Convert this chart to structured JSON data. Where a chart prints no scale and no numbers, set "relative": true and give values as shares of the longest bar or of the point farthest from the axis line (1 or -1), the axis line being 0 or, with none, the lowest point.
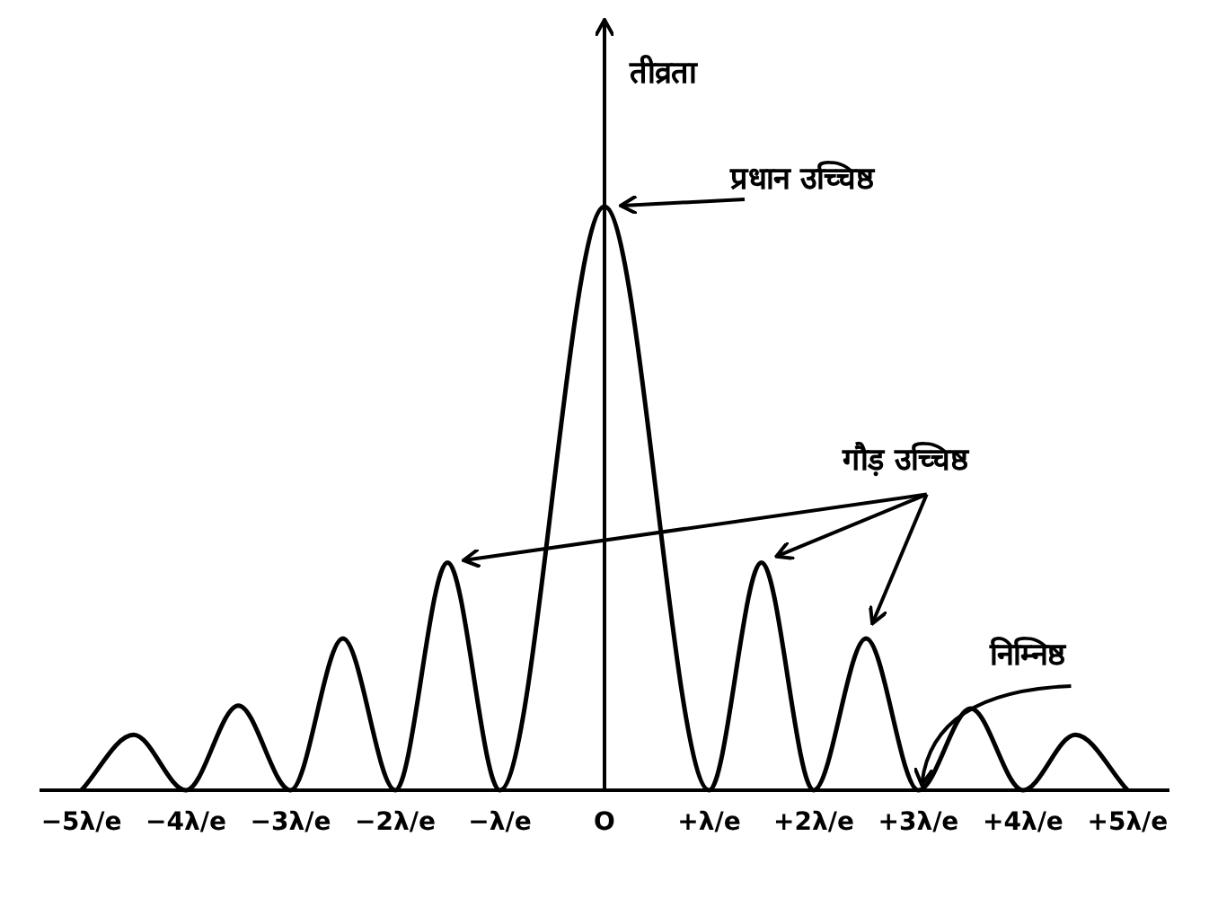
{
  "chart_data": {
    "type": "line",
    "relative": true,
    "color": "#000000",
    "ylabel": "तीव्रता",
    "x": [
      -5,
      -4.5,
      -4,
      -3.5,
      -3,
      -2.5,
      -2,
      -1.5,
      -1,
      0,
      1,
      1.5,
      2,
      2.5,
      3,
      3.5,
      4,
      4.5,
      5
    ],
    "values": [
      0,
      0.095,
      0,
      0.145,
      0,
      0.26,
      0,
      0.39,
      0,
      1,
      0,
      0.39,
      0,
      0.26,
      0,
      0.14,
      0,
      0.095,
      0
    ],
    "xlim": [
      -5.4,
      5.4
    ],
    "xticks": [
      {
        "value": -5,
        "label": "−5λ/e"
      },
      {
        "value": -4,
        "label": "−4λ/e"
      },
      {
        "value": -3,
        "label": "−3λ/e"
      },
      {
        "value": -2,
        "label": "−2λ/e"
      },
      {
        "value": -1,
        "label": "−λ/e"
      },
      {
        "value": 0,
        "label": "O"
      },
      {
        "value": 1,
        "label": "+λ/e"
      },
      {
        "value": 2,
        "label": "+2λ/e"
      },
      {
        "value": 3,
        "label": "+3λ/e"
      },
      {
        "value": 4,
        "label": "+4λ/e"
      },
      {
        "value": 5,
        "label": "+5λ/e"
      }
    ],
    "annotations": [
      "प्रधान उच्चिष्ठ",
      "गौड़ उच्चिष्ठ",
      {
        "text": "निम्निष्ठ",
        "x": 3,
        "y": 0
      }
    ]
  }
}
